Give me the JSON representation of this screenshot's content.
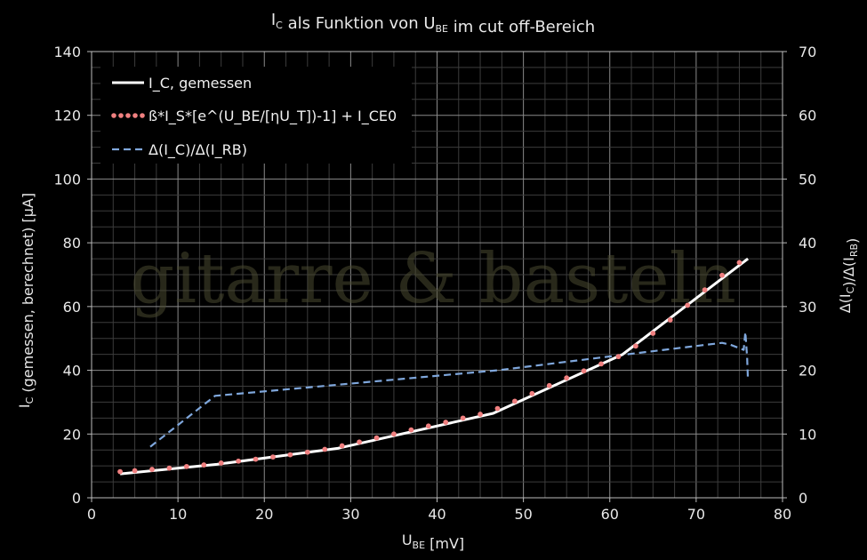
{
  "chart_data": {
    "type": "line",
    "title": "I_C als Funktion von U_BE im cut off-Bereich",
    "xlabel": "U_BE [mV]",
    "ylabel": "I_C (gemessen, berechnet) [µA]",
    "y2label": "Δ(I_C)/Δ(I_RB)",
    "xlim": [
      0,
      80
    ],
    "ylim": [
      0,
      140
    ],
    "y2lim": [
      0,
      70
    ],
    "xticks": [
      0,
      10,
      20,
      30,
      40,
      50,
      60,
      70,
      80
    ],
    "yticks": [
      0,
      20,
      40,
      60,
      80,
      100,
      120,
      140
    ],
    "y2ticks": [
      0,
      10,
      20,
      30,
      40,
      50,
      60,
      70
    ],
    "grid": true,
    "legend_position": "top-left",
    "watermark": "gitarre & basteln",
    "series": [
      {
        "name": "I_C, gemessen",
        "axis": "left",
        "style": "solid",
        "color": "#ffffff",
        "x": [
          3.3,
          14.5,
          28.5,
          46.5,
          61.5,
          76.0
        ],
        "y": [
          7.5,
          10.5,
          15.5,
          26.5,
          45.0,
          75.0
        ]
      },
      {
        "name": "ß*I_S*[e^(U_BE/[ηU_T])-1] + I_CE0",
        "axis": "left",
        "style": "dotted",
        "color": "#f08080",
        "x": [
          3.3,
          5,
          7,
          9,
          11,
          13,
          15,
          17,
          19,
          21,
          23,
          25,
          27,
          29,
          31,
          33,
          35,
          37,
          39,
          41,
          43,
          45,
          47,
          49,
          51,
          53,
          55,
          57,
          59,
          61,
          63,
          65,
          67,
          69,
          71,
          73,
          75
        ],
        "y": [
          8.2,
          8.5,
          8.9,
          9.3,
          9.8,
          10.3,
          10.9,
          11.5,
          12.1,
          12.8,
          13.5,
          14.3,
          15.2,
          16.3,
          17.5,
          18.8,
          20.0,
          21.3,
          22.5,
          23.7,
          25.0,
          26.2,
          28.0,
          30.3,
          32.7,
          35.2,
          37.6,
          39.8,
          42.0,
          44.3,
          47.6,
          51.6,
          55.8,
          60.4,
          65.2,
          69.8,
          73.8
        ]
      },
      {
        "name": "Δ(I_C)/Δ(I_RB)",
        "axis": "right",
        "style": "dashed",
        "color": "#7fa7dc",
        "x": [
          6.8,
          14.3,
          47.0,
          62.0,
          73.0,
          74.0,
          75.5,
          75.7,
          75.9,
          76.0
        ],
        "y": [
          8.0,
          16.0,
          20.0,
          22.5,
          24.3,
          24.0,
          23.2,
          26.0,
          22.0,
          18.5
        ]
      }
    ]
  }
}
